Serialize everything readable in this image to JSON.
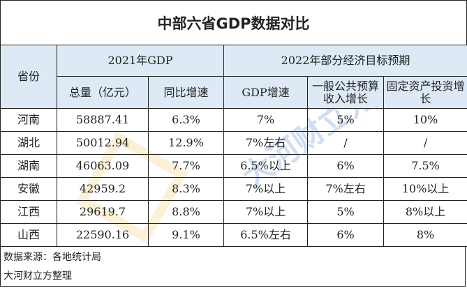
{
  "title": "中部六省GDP数据对比",
  "header": {
    "province": "省份",
    "group_2021": "2021年GDP",
    "group_2022": "2022年部分经济目标预期",
    "columns": [
      "总量（亿元）",
      "同比增速",
      "GDP增速",
      "一般公共预算收入增长",
      "固定资产投资增长"
    ]
  },
  "rows": [
    {
      "province": "河南",
      "total": "58887.41",
      "growth": "6.3%",
      "gdp_target": "7%",
      "revenue_target": "5%",
      "investment_target": "10%"
    },
    {
      "province": "湖北",
      "total": "50012.94",
      "growth": "12.9%",
      "gdp_target": "7%左右",
      "revenue_target": "/",
      "investment_target": "/"
    },
    {
      "province": "湖南",
      "total": "46063.09",
      "growth": "7.7%",
      "gdp_target": "6.5%以上",
      "revenue_target": "6%",
      "investment_target": "7.5%"
    },
    {
      "province": "安徽",
      "total": "42959.2",
      "growth": "8.3%",
      "gdp_target": "7%以上",
      "revenue_target": "7%左右",
      "investment_target": "10%以上"
    },
    {
      "province": "江西",
      "total": "29619.7",
      "growth": "8.8%",
      "gdp_target": "7%以上",
      "revenue_target": "5%",
      "investment_target": "8%以上"
    },
    {
      "province": "山西",
      "total": "22590.16",
      "growth": "9.1%",
      "gdp_target": "6.5%左右",
      "revenue_target": "6%",
      "investment_target": "8%"
    }
  ],
  "footer": {
    "source": "数据来源：各地统计局",
    "credit": "大河财立方整理"
  },
  "watermark": "大河财立方 Dahe Fortune Cube",
  "colors": {
    "header_bg": "#dde9f5"
  }
}
